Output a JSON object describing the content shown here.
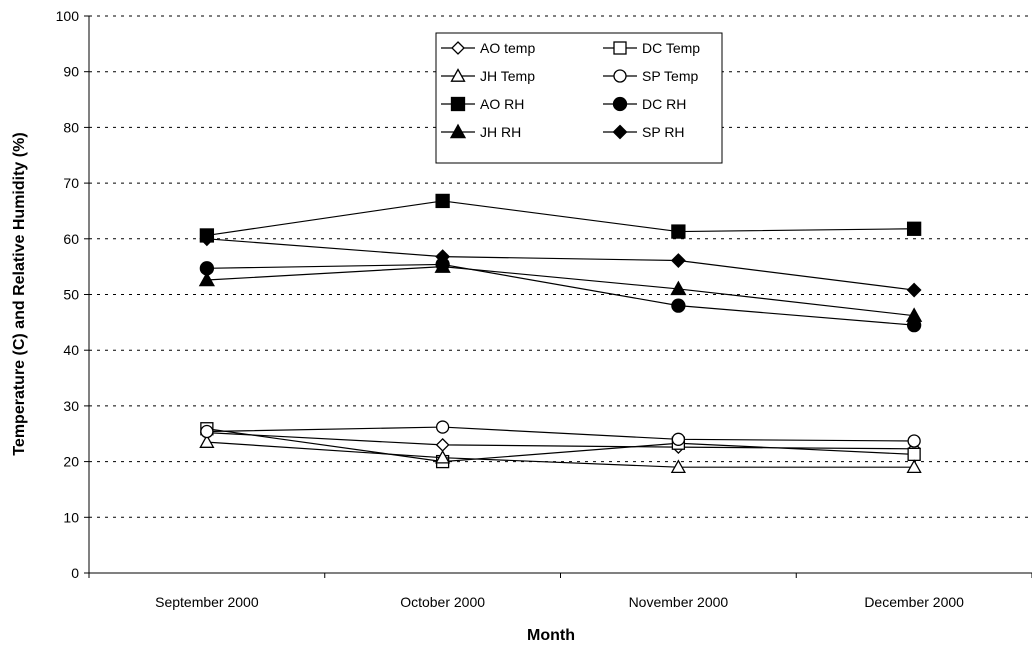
{
  "chart_data": {
    "type": "line",
    "title": "",
    "xlabel": "Month",
    "ylabel": "Temperature (C) and Relative Humidity (%)",
    "categories": [
      "September 2000",
      "October 2000",
      "November 2000",
      "December 2000"
    ],
    "ylim": [
      0,
      100
    ],
    "yticks": [
      0,
      10,
      20,
      30,
      40,
      50,
      60,
      70,
      80,
      90,
      100
    ],
    "grid": "horizontal dashed",
    "legend_position": "top-center",
    "series": [
      {
        "name": "AO temp",
        "marker": "diamond-open",
        "values": [
          25.2,
          23.0,
          22.6,
          22.3
        ]
      },
      {
        "name": "DC Temp",
        "marker": "square-open",
        "values": [
          25.9,
          20.0,
          23.3,
          21.3
        ]
      },
      {
        "name": "JH Temp",
        "marker": "triangle-open",
        "values": [
          23.5,
          20.7,
          19.0,
          19.0
        ]
      },
      {
        "name": "SP Temp",
        "marker": "circle-open",
        "values": [
          25.4,
          26.2,
          24.0,
          23.7
        ]
      },
      {
        "name": "AO RH",
        "marker": "square-filled",
        "values": [
          60.6,
          66.8,
          61.3,
          61.8
        ]
      },
      {
        "name": "DC RH",
        "marker": "circle-filled",
        "values": [
          54.7,
          55.4,
          48.0,
          44.5
        ]
      },
      {
        "name": "JH RH",
        "marker": "triangle-filled",
        "values": [
          52.6,
          55.0,
          51.0,
          46.2
        ]
      },
      {
        "name": "SP RH",
        "marker": "diamond-filled",
        "values": [
          60.0,
          56.8,
          56.1,
          50.8
        ]
      }
    ]
  }
}
